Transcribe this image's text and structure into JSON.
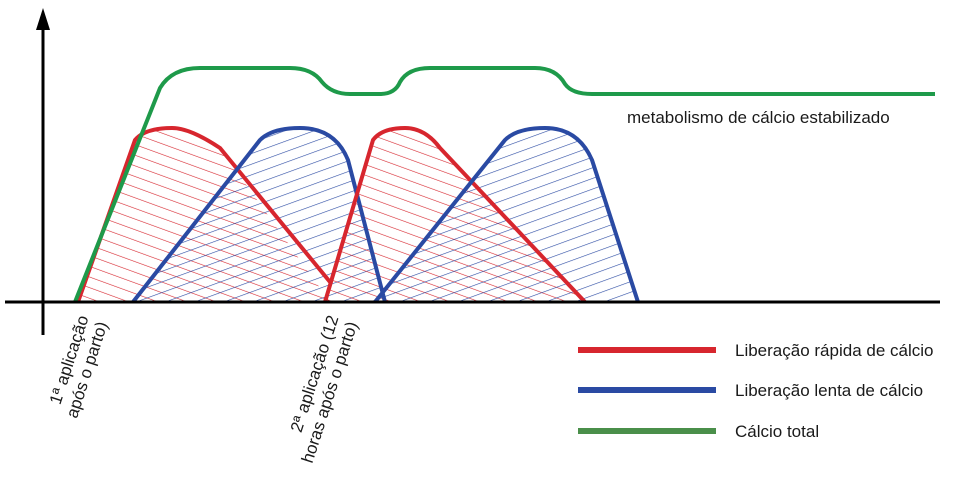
{
  "annotation": "metabolismo de cálcio estabilizado",
  "x_events": [
    {
      "line1": "1ª aplicação",
      "line2": "após o parto)"
    },
    {
      "line1": "2ª aplicação (12",
      "line2": "horas após o parto)"
    }
  ],
  "legend": [
    {
      "label": "Liberação rápida de cálcio",
      "color": "#d7262e"
    },
    {
      "label": "Liberação lenta de cálcio",
      "color": "#2a4aa3"
    },
    {
      "label": "Cálcio total",
      "color": "#1e9a4a"
    }
  ],
  "colors": {
    "axis": "#000000",
    "fast_release": "#d7262e",
    "slow_release": "#2a4aa3",
    "total": "#1e9a4a"
  }
}
